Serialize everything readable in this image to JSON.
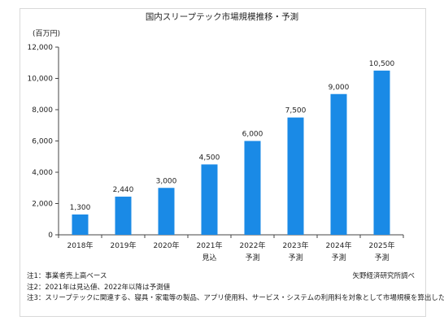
{
  "chart_data": {
    "type": "bar",
    "title": "国内スリープテック市場規模推移・予測",
    "unit_label": "(百万円)",
    "categories": [
      {
        "year": "2018年",
        "sub": ""
      },
      {
        "year": "2019年",
        "sub": ""
      },
      {
        "year": "2020年",
        "sub": ""
      },
      {
        "year": "2021年",
        "sub": "見込"
      },
      {
        "year": "2022年",
        "sub": "予測"
      },
      {
        "year": "2023年",
        "sub": "予測"
      },
      {
        "year": "2024年",
        "sub": "予測"
      },
      {
        "year": "2025年",
        "sub": "予測"
      }
    ],
    "values": [
      1300,
      2440,
      3000,
      4500,
      6000,
      7500,
      9000,
      10500
    ],
    "value_labels": [
      "1,300",
      "2,440",
      "3,000",
      "4,500",
      "6,000",
      "7,500",
      "9,000",
      "10,500"
    ],
    "ylim": [
      0,
      12000
    ],
    "yticks": [
      0,
      2000,
      4000,
      6000,
      8000,
      10000,
      12000
    ],
    "ytick_labels": [
      "0",
      "2,000",
      "4,000",
      "6,000",
      "8,000",
      "10,000",
      "12,000"
    ],
    "grid": false,
    "legend": "none",
    "bar_color": "#1a8ae6"
  },
  "notes": [
    "注1：事業者売上高ベース",
    "注2：2021年は見込値、2022年以降は予測値",
    "注3：スリープテックに関連する、寝具・家電等の製品、アプリ使用料、サービス・システムの利用料を対象として市場規模を算出した。"
  ],
  "source": "矢野経済研究所調べ"
}
